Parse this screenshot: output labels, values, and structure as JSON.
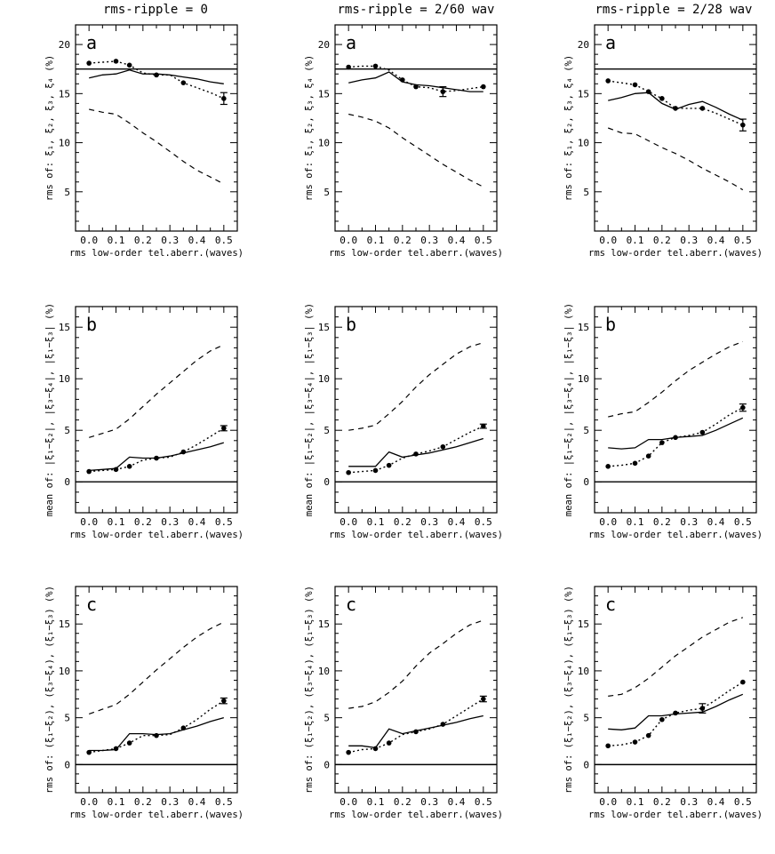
{
  "column_titles": [
    "rms-ripple = 0",
    "rms-ripple = 2/60 wav",
    "rms-ripple = 2/28 wav"
  ],
  "row_letters": [
    "a",
    "b",
    "c"
  ],
  "ylabels": [
    "rms of: ξ₁, ξ₂, ξ₃, ξ₄ (%)",
    "mean of: |ξ₁−ξ₂|, |ξ₃−ξ₄|, |ξ₁−ξ₃| (%)",
    "rms of: (ξ₁−ξ₂), (ξ₃−ξ₄), (ξ₁−ξ₃) (%)"
  ],
  "xlabels": [
    "rms low-order tel.aberr.(waves)",
    "rms low-order tel.aberr.(waves)",
    "rms low-order tel.aberr.(waves)",
    "rms low-order tel.aberr.(waves)",
    "rms low-order tel.aberr.(waves)",
    "rms low-order tel.aberr.(waves)",
    "rms low-order tel.aberr.(waves)",
    "rms low-order tel.aberr.(waves)",
    "rms low-order tel.aberr.(waves)"
  ],
  "xtick_labels": [
    "0.0",
    "0.1",
    "0.2",
    "0.3",
    "0.4",
    "0.5"
  ],
  "ytick_labels": {
    "a": [
      "5",
      "10",
      "15",
      "20"
    ],
    "b": [
      "0",
      "5",
      "10",
      "15"
    ],
    "c": [
      "0",
      "5",
      "10",
      "15"
    ]
  },
  "chart_data": [
    {
      "type": "line",
      "panel": "a",
      "column": 1,
      "xlim": [
        -0.05,
        0.55
      ],
      "ylim": [
        1,
        22
      ],
      "yticks": [
        5,
        10,
        15,
        20
      ],
      "hline": 17.5,
      "x": [
        0.0,
        0.05,
        0.1,
        0.15,
        0.2,
        0.25,
        0.3,
        0.35,
        0.4,
        0.45,
        0.5
      ],
      "series": [
        {
          "name": "dotted-with-markers",
          "style": "dotted",
          "values": [
            18.1,
            18.2,
            18.3,
            17.9,
            17.1,
            16.9,
            16.9,
            16.1,
            15.6,
            15.1,
            14.5
          ],
          "marker_idx": [
            0,
            2,
            3,
            5,
            7,
            10
          ],
          "error_idx": 10,
          "error": 0.6
        },
        {
          "name": "solid",
          "style": "solid",
          "values": [
            16.6,
            16.9,
            17.0,
            17.4,
            17.0,
            17.0,
            16.9,
            16.7,
            16.5,
            16.2,
            16.0
          ]
        },
        {
          "name": "dashed",
          "style": "dashed",
          "values": [
            13.4,
            13.1,
            12.9,
            12.0,
            11.0,
            10.1,
            9.1,
            8.1,
            7.2,
            6.5,
            5.8
          ]
        }
      ]
    },
    {
      "type": "line",
      "panel": "a",
      "column": 2,
      "xlim": [
        -0.05,
        0.55
      ],
      "ylim": [
        1,
        22
      ],
      "yticks": [
        5,
        10,
        15,
        20
      ],
      "hline": 17.5,
      "x": [
        0.0,
        0.05,
        0.1,
        0.15,
        0.2,
        0.25,
        0.3,
        0.35,
        0.4,
        0.45,
        0.5
      ],
      "series": [
        {
          "name": "dotted-with-markers",
          "style": "dotted",
          "values": [
            17.7,
            17.8,
            17.8,
            17.4,
            16.4,
            15.7,
            15.6,
            15.2,
            15.3,
            15.5,
            15.7
          ],
          "marker_idx": [
            0,
            2,
            4,
            5,
            7,
            10
          ],
          "error_idx": 7,
          "error": 0.5
        },
        {
          "name": "solid",
          "style": "solid",
          "values": [
            16.1,
            16.4,
            16.6,
            17.2,
            16.2,
            15.9,
            15.8,
            15.6,
            15.4,
            15.2,
            15.2
          ]
        },
        {
          "name": "dashed",
          "style": "dashed",
          "values": [
            12.9,
            12.6,
            12.2,
            11.5,
            10.5,
            9.6,
            8.7,
            7.8,
            7.0,
            6.2,
            5.5
          ]
        }
      ]
    },
    {
      "type": "line",
      "panel": "a",
      "column": 3,
      "xlim": [
        -0.05,
        0.55
      ],
      "ylim": [
        1,
        22
      ],
      "yticks": [
        5,
        10,
        15,
        20
      ],
      "hline": 17.5,
      "x": [
        0.0,
        0.05,
        0.1,
        0.15,
        0.2,
        0.25,
        0.3,
        0.35,
        0.4,
        0.45,
        0.5
      ],
      "series": [
        {
          "name": "dotted-with-markers",
          "style": "dotted",
          "values": [
            16.3,
            16.1,
            15.9,
            15.2,
            14.5,
            13.5,
            13.5,
            13.5,
            13.0,
            12.4,
            11.8
          ],
          "marker_idx": [
            0,
            2,
            3,
            4,
            5,
            7,
            10
          ],
          "error_idx": 10,
          "error": 0.6
        },
        {
          "name": "solid",
          "style": "solid",
          "values": [
            14.3,
            14.6,
            15.0,
            15.1,
            14.0,
            13.4,
            13.9,
            14.2,
            13.6,
            12.9,
            12.3
          ]
        },
        {
          "name": "dashed",
          "style": "dashed",
          "values": [
            11.5,
            11.0,
            10.9,
            10.2,
            9.5,
            8.9,
            8.2,
            7.4,
            6.7,
            6.0,
            5.2
          ]
        }
      ]
    },
    {
      "type": "line",
      "panel": "b",
      "column": 1,
      "xlim": [
        -0.05,
        0.55
      ],
      "ylim": [
        -3,
        17
      ],
      "yticks": [
        0,
        5,
        10,
        15
      ],
      "hline": 0,
      "x": [
        0.0,
        0.05,
        0.1,
        0.15,
        0.2,
        0.25,
        0.3,
        0.35,
        0.4,
        0.45,
        0.5
      ],
      "series": [
        {
          "name": "dotted-with-markers",
          "style": "dotted",
          "values": [
            1.0,
            1.1,
            1.2,
            1.5,
            2.1,
            2.3,
            2.4,
            2.9,
            3.6,
            4.4,
            5.2
          ],
          "marker_idx": [
            0,
            2,
            3,
            5,
            7,
            10
          ],
          "error_idx": 10,
          "error": 0.25
        },
        {
          "name": "solid",
          "style": "solid",
          "values": [
            1.1,
            1.2,
            1.3,
            2.4,
            2.3,
            2.3,
            2.5,
            2.8,
            3.1,
            3.4,
            3.8
          ]
        },
        {
          "name": "dashed",
          "style": "dashed",
          "values": [
            4.3,
            4.7,
            5.1,
            6.1,
            7.3,
            8.5,
            9.6,
            10.7,
            11.8,
            12.7,
            13.3
          ]
        }
      ]
    },
    {
      "type": "line",
      "panel": "b",
      "column": 2,
      "xlim": [
        -0.05,
        0.55
      ],
      "ylim": [
        -3,
        17
      ],
      "yticks": [
        0,
        5,
        10,
        15
      ],
      "hline": 0,
      "x": [
        0.0,
        0.05,
        0.1,
        0.15,
        0.2,
        0.25,
        0.3,
        0.35,
        0.4,
        0.45,
        0.5
      ],
      "series": [
        {
          "name": "dotted-with-markers",
          "style": "dotted",
          "values": [
            0.9,
            1.0,
            1.1,
            1.6,
            2.3,
            2.7,
            3.0,
            3.4,
            4.1,
            4.8,
            5.4
          ],
          "marker_idx": [
            0,
            2,
            3,
            5,
            7,
            10
          ],
          "error_idx": 10,
          "error": 0.2
        },
        {
          "name": "solid",
          "style": "solid",
          "values": [
            1.5,
            1.5,
            1.5,
            2.9,
            2.4,
            2.6,
            2.8,
            3.1,
            3.4,
            3.8,
            4.2
          ]
        },
        {
          "name": "dashed",
          "style": "dashed",
          "values": [
            5.0,
            5.2,
            5.5,
            6.6,
            7.8,
            9.2,
            10.4,
            11.4,
            12.4,
            13.1,
            13.5
          ]
        }
      ]
    },
    {
      "type": "line",
      "panel": "b",
      "column": 3,
      "xlim": [
        -0.05,
        0.55
      ],
      "ylim": [
        -3,
        17
      ],
      "yticks": [
        0,
        5,
        10,
        15
      ],
      "hline": 0,
      "x": [
        0.0,
        0.05,
        0.1,
        0.15,
        0.2,
        0.25,
        0.3,
        0.35,
        0.4,
        0.45,
        0.5
      ],
      "series": [
        {
          "name": "dotted-with-markers",
          "style": "dotted",
          "values": [
            1.5,
            1.6,
            1.8,
            2.5,
            3.8,
            4.3,
            4.5,
            4.8,
            5.6,
            6.5,
            7.2
          ],
          "marker_idx": [
            0,
            2,
            3,
            4,
            5,
            7,
            10
          ],
          "error_idx": 10,
          "error": 0.35
        },
        {
          "name": "solid",
          "style": "solid",
          "values": [
            3.3,
            3.2,
            3.3,
            4.1,
            4.1,
            4.3,
            4.4,
            4.5,
            5.0,
            5.6,
            6.2
          ]
        },
        {
          "name": "dashed",
          "style": "dashed",
          "values": [
            6.3,
            6.6,
            6.8,
            7.7,
            8.7,
            9.8,
            10.8,
            11.6,
            12.4,
            13.1,
            13.6
          ]
        }
      ]
    },
    {
      "type": "line",
      "panel": "c",
      "column": 1,
      "xlim": [
        -0.05,
        0.55
      ],
      "ylim": [
        -3,
        19
      ],
      "yticks": [
        0,
        5,
        10,
        15
      ],
      "hline": 0,
      "x": [
        0.0,
        0.05,
        0.1,
        0.15,
        0.2,
        0.25,
        0.3,
        0.35,
        0.4,
        0.45,
        0.5
      ],
      "series": [
        {
          "name": "dotted-with-markers",
          "style": "dotted",
          "values": [
            1.3,
            1.5,
            1.7,
            2.3,
            3.1,
            3.1,
            3.2,
            3.9,
            4.8,
            5.9,
            6.8
          ],
          "marker_idx": [
            0,
            2,
            3,
            5,
            7,
            10
          ],
          "error_idx": 10,
          "error": 0.3
        },
        {
          "name": "solid",
          "style": "solid",
          "values": [
            1.5,
            1.5,
            1.6,
            3.3,
            3.3,
            3.2,
            3.3,
            3.7,
            4.1,
            4.6,
            5.0
          ]
        },
        {
          "name": "dashed",
          "style": "dashed",
          "values": [
            5.4,
            5.9,
            6.4,
            7.5,
            8.8,
            10.1,
            11.3,
            12.5,
            13.6,
            14.5,
            15.2
          ]
        }
      ]
    },
    {
      "type": "line",
      "panel": "c",
      "column": 2,
      "xlim": [
        -0.05,
        0.55
      ],
      "ylim": [
        -3,
        19
      ],
      "yticks": [
        0,
        5,
        10,
        15
      ],
      "hline": 0,
      "x": [
        0.0,
        0.05,
        0.1,
        0.15,
        0.2,
        0.25,
        0.3,
        0.35,
        0.4,
        0.45,
        0.5
      ],
      "series": [
        {
          "name": "dotted-with-markers",
          "style": "dotted",
          "values": [
            1.3,
            1.6,
            1.7,
            2.3,
            3.2,
            3.5,
            3.8,
            4.3,
            5.2,
            6.1,
            7.0
          ],
          "marker_idx": [
            0,
            2,
            3,
            5,
            7,
            10
          ],
          "error_idx": 10,
          "error": 0.3
        },
        {
          "name": "solid",
          "style": "solid",
          "values": [
            2.0,
            2.0,
            1.8,
            3.8,
            3.3,
            3.6,
            3.9,
            4.2,
            4.5,
            4.9,
            5.2
          ]
        },
        {
          "name": "dashed",
          "style": "dashed",
          "values": [
            6.0,
            6.2,
            6.7,
            7.7,
            8.9,
            10.5,
            11.9,
            12.9,
            14.0,
            14.9,
            15.4
          ]
        }
      ]
    },
    {
      "type": "line",
      "panel": "c",
      "column": 3,
      "xlim": [
        -0.05,
        0.55
      ],
      "ylim": [
        -3,
        19
      ],
      "yticks": [
        0,
        5,
        10,
        15
      ],
      "hline": 0,
      "x": [
        0.0,
        0.05,
        0.1,
        0.15,
        0.2,
        0.25,
        0.3,
        0.35,
        0.4,
        0.45,
        0.5
      ],
      "series": [
        {
          "name": "dotted-with-markers",
          "style": "dotted",
          "values": [
            2.0,
            2.1,
            2.4,
            3.1,
            4.8,
            5.5,
            5.8,
            6.0,
            6.9,
            7.9,
            8.8
          ],
          "marker_idx": [
            0,
            2,
            3,
            4,
            5,
            7,
            10
          ],
          "error_idx": 7,
          "error": 0.5
        },
        {
          "name": "solid",
          "style": "solid",
          "values": [
            3.8,
            3.7,
            3.9,
            5.2,
            5.2,
            5.4,
            5.5,
            5.6,
            6.2,
            6.9,
            7.5
          ]
        },
        {
          "name": "dashed",
          "style": "dashed",
          "values": [
            7.3,
            7.5,
            8.2,
            9.2,
            10.4,
            11.6,
            12.6,
            13.6,
            14.4,
            15.2,
            15.7
          ]
        }
      ]
    }
  ]
}
